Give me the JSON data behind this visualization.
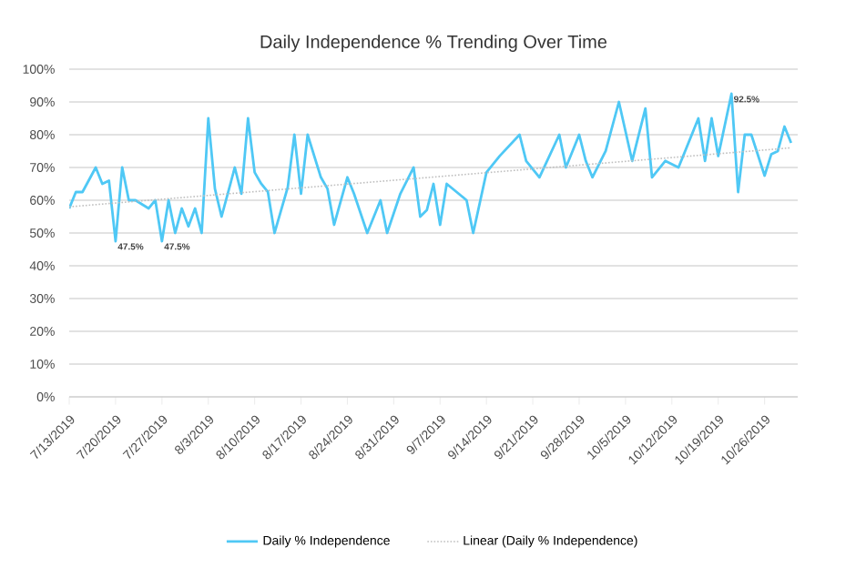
{
  "chart_data": {
    "type": "line",
    "title": "Daily Independence % Trending Over Time",
    "x": [
      "2019-07-13",
      "2019-07-14",
      "2019-07-15",
      "2019-07-17",
      "2019-07-18",
      "2019-07-19",
      "2019-07-20",
      "2019-07-21",
      "2019-07-22",
      "2019-07-23",
      "2019-07-25",
      "2019-07-26",
      "2019-07-27",
      "2019-07-28",
      "2019-07-29",
      "2019-07-30",
      "2019-07-31",
      "2019-08-01",
      "2019-08-02",
      "2019-08-03",
      "2019-08-04",
      "2019-08-05",
      "2019-08-07",
      "2019-08-08",
      "2019-08-09",
      "2019-08-10",
      "2019-08-11",
      "2019-08-12",
      "2019-08-13",
      "2019-08-15",
      "2019-08-16",
      "2019-08-17",
      "2019-08-18",
      "2019-08-20",
      "2019-08-21",
      "2019-08-22",
      "2019-08-24",
      "2019-08-25",
      "2019-08-27",
      "2019-08-29",
      "2019-08-30",
      "2019-09-01",
      "2019-09-03",
      "2019-09-04",
      "2019-09-05",
      "2019-09-06",
      "2019-09-07",
      "2019-09-08",
      "2019-09-11",
      "2019-09-12",
      "2019-09-14",
      "2019-09-16",
      "2019-09-19",
      "2019-09-20",
      "2019-09-22",
      "2019-09-25",
      "2019-09-26",
      "2019-09-28",
      "2019-09-29",
      "2019-09-30",
      "2019-10-02",
      "2019-10-04",
      "2019-10-06",
      "2019-10-08",
      "2019-10-09",
      "2019-10-11",
      "2019-10-13",
      "2019-10-16",
      "2019-10-17",
      "2019-10-18",
      "2019-10-19",
      "2019-10-21",
      "2019-10-22",
      "2019-10-23",
      "2019-10-24",
      "2019-10-26",
      "2019-10-27",
      "2019-10-28",
      "2019-10-29",
      "2019-10-30"
    ],
    "series": [
      {
        "name": "Daily % Independence",
        "color": "#4fc8f5",
        "line_style": "solid",
        "values": [
          57.5,
          62.5,
          62.5,
          70,
          65,
          66,
          47.5,
          70,
          60,
          60,
          57.5,
          60,
          47.5,
          60,
          50,
          57.5,
          52,
          57.5,
          50,
          85,
          63.5,
          55,
          70,
          62,
          85,
          68.5,
          65,
          62.5,
          50,
          64,
          80,
          62,
          80,
          67,
          63.5,
          52.5,
          67,
          62,
          50,
          60,
          50,
          62,
          70,
          55,
          57,
          65,
          52.5,
          65,
          60,
          50,
          68.5,
          73.5,
          80,
          72,
          67,
          80,
          70,
          80,
          72,
          67,
          75,
          90,
          72,
          88,
          67,
          72,
          70,
          85,
          72,
          85,
          73.5,
          92.5,
          62.5,
          80,
          80,
          67.5,
          74,
          75,
          82.5,
          77.5
        ],
        "value_labels": [
          null,
          null,
          null,
          null,
          null,
          null,
          "47.5%",
          null,
          null,
          null,
          null,
          null,
          "47.5%",
          null,
          null,
          null,
          null,
          null,
          null,
          null,
          null,
          null,
          null,
          null,
          null,
          null,
          null,
          null,
          null,
          null,
          null,
          null,
          null,
          null,
          null,
          null,
          null,
          null,
          null,
          null,
          null,
          null,
          null,
          null,
          null,
          null,
          null,
          null,
          null,
          null,
          null,
          null,
          null,
          null,
          null,
          null,
          null,
          null,
          null,
          null,
          null,
          null,
          null,
          null,
          null,
          null,
          null,
          null,
          null,
          null,
          null,
          "92.5%",
          null,
          null,
          null,
          null,
          null,
          null,
          null,
          null
        ]
      },
      {
        "name": "Linear (Daily % Independence)",
        "color": "#bfbfbf",
        "line_style": "dotted",
        "x": [
          "2019-07-13",
          "2019-10-30"
        ],
        "values": [
          58,
          76
        ]
      }
    ],
    "xlim": [
      "2019-07-13",
      "2019-10-31"
    ],
    "xticks": [
      {
        "value": "2019-07-13",
        "label": "7/13/2019"
      },
      {
        "value": "2019-07-20",
        "label": "7/20/2019"
      },
      {
        "value": "2019-07-27",
        "label": "7/27/2019"
      },
      {
        "value": "2019-08-03",
        "label": "8/3/2019"
      },
      {
        "value": "2019-08-10",
        "label": "8/10/2019"
      },
      {
        "value": "2019-08-17",
        "label": "8/17/2019"
      },
      {
        "value": "2019-08-24",
        "label": "8/24/2019"
      },
      {
        "value": "2019-08-31",
        "label": "8/31/2019"
      },
      {
        "value": "2019-09-07",
        "label": "9/7/2019"
      },
      {
        "value": "2019-09-14",
        "label": "9/14/2019"
      },
      {
        "value": "2019-09-21",
        "label": "9/21/2019"
      },
      {
        "value": "2019-09-28",
        "label": "9/28/2019"
      },
      {
        "value": "2019-10-05",
        "label": "10/5/2019"
      },
      {
        "value": "2019-10-12",
        "label": "10/12/2019"
      },
      {
        "value": "2019-10-19",
        "label": "10/19/2019"
      },
      {
        "value": "2019-10-26",
        "label": "10/26/2019"
      }
    ],
    "ylim": [
      0,
      100
    ],
    "yticks": [
      {
        "value": 0,
        "label": "0%"
      },
      {
        "value": 10,
        "label": "10%"
      },
      {
        "value": 20,
        "label": "20%"
      },
      {
        "value": 30,
        "label": "30%"
      },
      {
        "value": 40,
        "label": "40%"
      },
      {
        "value": 50,
        "label": "50%"
      },
      {
        "value": 60,
        "label": "60%"
      },
      {
        "value": 70,
        "label": "70%"
      },
      {
        "value": 80,
        "label": "80%"
      },
      {
        "value": 90,
        "label": "90%"
      },
      {
        "value": 100,
        "label": "100%"
      }
    ],
    "grid": "y",
    "legend": "bottom",
    "marker": "none"
  }
}
